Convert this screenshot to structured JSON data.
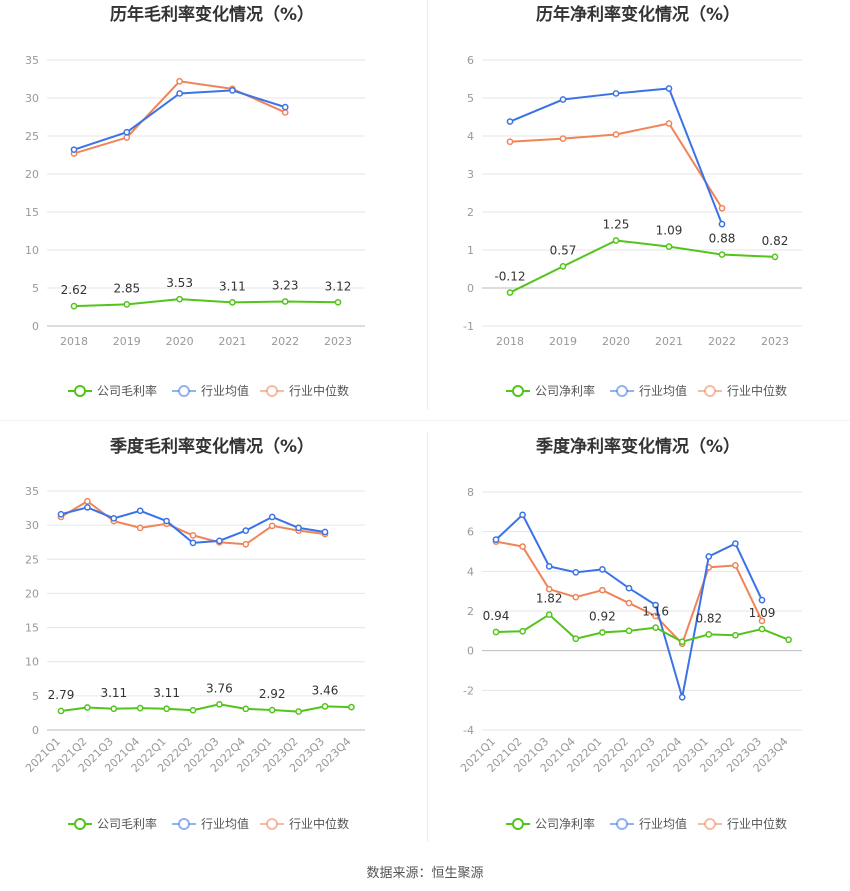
{
  "colors": {
    "company": "#52c41a",
    "industry_avg": "#3b73e6",
    "industry_median": "#f08457",
    "grid": "#e6e6e6",
    "axis_text": "#999999",
    "title": "#333333"
  },
  "legend": {
    "gross_company": "公司毛利率",
    "net_company": "公司净利率",
    "avg": "行业均值",
    "median": "行业中位数"
  },
  "source_text": "数据来源：恒生聚源",
  "chart_data": [
    {
      "id": "annual-gross",
      "type": "line",
      "title": "历年毛利率变化情况（%）",
      "categories": [
        "2018",
        "2019",
        "2020",
        "2021",
        "2022",
        "2023"
      ],
      "ylim": [
        0,
        35
      ],
      "yticks": [
        0,
        5,
        10,
        15,
        20,
        25,
        30,
        35
      ],
      "legend_company": "公司毛利率",
      "series": [
        {
          "key": "company",
          "name": "公司毛利率",
          "values": [
            2.62,
            2.85,
            3.53,
            3.11,
            3.23,
            3.12
          ],
          "labels": [
            "2.62",
            "2.85",
            "3.53",
            "3.11",
            "3.23",
            "3.12"
          ]
        },
        {
          "key": "industry_avg",
          "name": "行业均值",
          "values": [
            23.2,
            25.5,
            30.6,
            31.0,
            28.8,
            null
          ]
        },
        {
          "key": "industry_median",
          "name": "行业中位数",
          "values": [
            22.7,
            24.8,
            32.2,
            31.2,
            28.1,
            null
          ]
        }
      ]
    },
    {
      "id": "annual-net",
      "type": "line",
      "title": "历年净利率变化情况（%）",
      "categories": [
        "2018",
        "2019",
        "2020",
        "2021",
        "2022",
        "2023"
      ],
      "ylim": [
        -1,
        6
      ],
      "yticks": [
        -1,
        0,
        1,
        2,
        3,
        4,
        5,
        6
      ],
      "legend_company": "公司净利率",
      "series": [
        {
          "key": "company",
          "name": "公司净利率",
          "values": [
            -0.12,
            0.57,
            1.25,
            1.09,
            0.88,
            0.82
          ],
          "labels": [
            "-0.12",
            "0.57",
            "1.25",
            "1.09",
            "0.88",
            "0.82"
          ]
        },
        {
          "key": "industry_avg",
          "name": "行业均值",
          "values": [
            4.38,
            4.96,
            5.12,
            5.25,
            1.68,
            null
          ]
        },
        {
          "key": "industry_median",
          "name": "行业中位数",
          "values": [
            3.85,
            3.93,
            4.04,
            4.33,
            2.1,
            null
          ]
        }
      ]
    },
    {
      "id": "quarterly-gross",
      "type": "line",
      "title": "季度毛利率变化情况（%）",
      "categories": [
        "2021Q1",
        "2021Q2",
        "2021Q3",
        "2021Q4",
        "2022Q1",
        "2022Q2",
        "2022Q3",
        "2022Q4",
        "2023Q1",
        "2023Q2",
        "2023Q3",
        "2023Q4"
      ],
      "ylim": [
        0,
        35
      ],
      "yticks": [
        0,
        5,
        10,
        15,
        20,
        25,
        30,
        35
      ],
      "legend_company": "公司毛利率",
      "series": [
        {
          "key": "company",
          "name": "公司毛利率",
          "values": [
            2.79,
            3.3,
            3.11,
            3.2,
            3.11,
            2.9,
            3.76,
            3.1,
            2.92,
            2.7,
            3.46,
            3.35
          ],
          "labels": [
            "2.79",
            "",
            "3.11",
            "",
            "3.11",
            "",
            "3.76",
            "",
            "2.92",
            "",
            "3.46",
            ""
          ]
        },
        {
          "key": "industry_avg",
          "name": "行业均值",
          "values": [
            31.6,
            32.6,
            31.0,
            32.1,
            30.6,
            27.4,
            27.7,
            29.2,
            31.2,
            29.6,
            29.0,
            null
          ]
        },
        {
          "key": "industry_median",
          "name": "行业中位数",
          "values": [
            31.2,
            33.5,
            30.6,
            29.6,
            30.2,
            28.5,
            27.5,
            27.2,
            29.9,
            29.2,
            28.7,
            null
          ]
        }
      ]
    },
    {
      "id": "quarterly-net",
      "type": "line",
      "title": "季度净利率变化情况（%）",
      "categories": [
        "2021Q1",
        "2021Q2",
        "2021Q3",
        "2021Q4",
        "2022Q1",
        "2022Q2",
        "2022Q3",
        "2022Q4",
        "2023Q1",
        "2023Q2",
        "2023Q3",
        "2023Q4"
      ],
      "ylim": [
        -4,
        8
      ],
      "yticks": [
        -4,
        -2,
        0,
        2,
        4,
        6,
        8
      ],
      "legend_company": "公司净利率",
      "series": [
        {
          "key": "company",
          "name": "公司净利率",
          "values": [
            0.94,
            0.98,
            1.82,
            0.6,
            0.92,
            1.0,
            1.16,
            0.45,
            0.82,
            0.78,
            1.09,
            0.55
          ],
          "labels": [
            "0.94",
            "",
            "1.82",
            "",
            "0.92",
            "",
            "1.16",
            "",
            "0.82",
            "",
            "1.09",
            ""
          ]
        },
        {
          "key": "industry_avg",
          "name": "行业均值",
          "values": [
            5.6,
            6.85,
            4.25,
            3.95,
            4.1,
            3.15,
            2.3,
            -2.35,
            4.75,
            5.4,
            2.55,
            null
          ]
        },
        {
          "key": "industry_median",
          "name": "行业中位数",
          "values": [
            5.5,
            5.25,
            3.1,
            2.7,
            3.05,
            2.4,
            1.75,
            0.35,
            4.2,
            4.3,
            1.5,
            null
          ]
        }
      ]
    }
  ]
}
